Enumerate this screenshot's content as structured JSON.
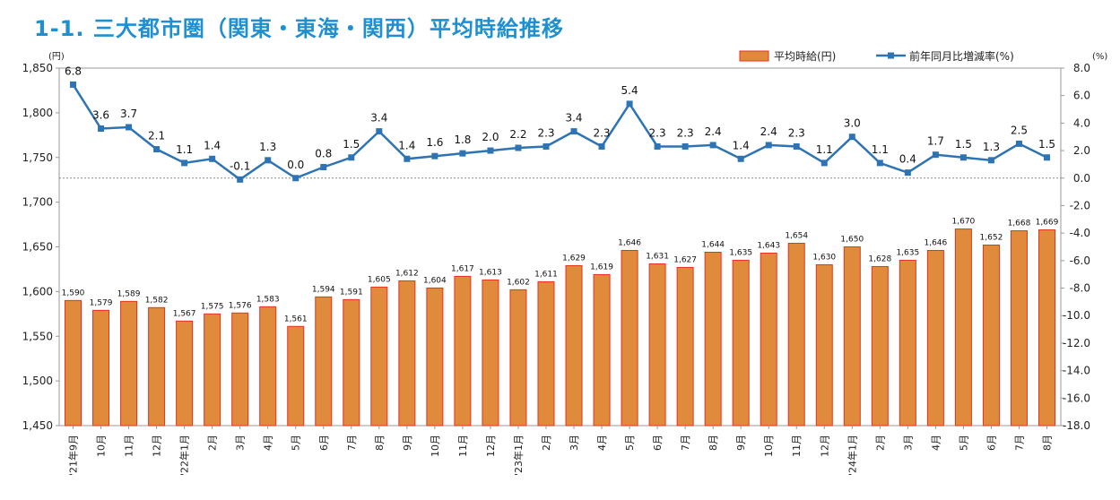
{
  "title": "1-1. 三大都市圏（関東・東海・関西）平均時給推移",
  "chart_data": {
    "type": "bar+line",
    "categories": [
      "'21年9月",
      "10月",
      "11月",
      "12月",
      "'22年1月",
      "2月",
      "3月",
      "4月",
      "5月",
      "6月",
      "7月",
      "8月",
      "9月",
      "10月",
      "11月",
      "12月",
      "'23年1月",
      "2月",
      "3月",
      "4月",
      "5月",
      "6月",
      "7月",
      "8月",
      "9月",
      "10月",
      "11月",
      "12月",
      "'24年1月",
      "2月",
      "3月",
      "4月",
      "5月",
      "6月",
      "7月",
      "8月"
    ],
    "series": [
      {
        "name": "平均時給(円)",
        "axis": "left",
        "type": "bar",
        "values": [
          1590,
          1579,
          1589,
          1582,
          1567,
          1575,
          1576,
          1583,
          1561,
          1594,
          1591,
          1605,
          1612,
          1604,
          1617,
          1613,
          1602,
          1611,
          1629,
          1619,
          1646,
          1631,
          1627,
          1644,
          1635,
          1643,
          1654,
          1630,
          1650,
          1628,
          1635,
          1646,
          1670,
          1652,
          1668,
          1669
        ]
      },
      {
        "name": "前年同月比増減率(%)",
        "axis": "right",
        "type": "line",
        "values": [
          6.8,
          3.6,
          3.7,
          2.1,
          1.1,
          1.4,
          -0.1,
          1.3,
          0.0,
          0.8,
          1.5,
          3.4,
          1.4,
          1.6,
          1.8,
          2.0,
          2.2,
          2.3,
          3.4,
          2.3,
          5.4,
          2.3,
          2.3,
          2.4,
          1.4,
          2.4,
          2.3,
          1.1,
          3.0,
          1.1,
          0.4,
          1.7,
          1.5,
          1.3,
          2.5,
          1.5
        ]
      }
    ],
    "bar_labels": [
      "1,590",
      "1,579",
      "1,589",
      "1,582",
      "1,567",
      "1,575",
      "1,576",
      "1,583",
      "1,561",
      "1,594",
      "1,591",
      "1,605",
      "1,612",
      "1,604",
      "1,617",
      "1,613",
      "1,602",
      "1,611",
      "1,629",
      "1,619",
      "1,646",
      "1,631",
      "1,627",
      "1,644",
      "1,635",
      "1,643",
      "1,654",
      "1,630",
      "1,650",
      "1,628",
      "1,635",
      "1,646",
      "1,670",
      "1,652",
      "1,668",
      "1,669"
    ],
    "line_labels": [
      "6.8",
      "3.6",
      "3.7",
      "2.1",
      "1.1",
      "1.4",
      "-0.1",
      "1.3",
      "0.0",
      "0.8",
      "1.5",
      "3.4",
      "1.4",
      "1.6",
      "1.8",
      "2.0",
      "2.2",
      "2.3",
      "3.4",
      "2.3",
      "5.4",
      "2.3",
      "2.3",
      "2.4",
      "1.4",
      "2.4",
      "2.3",
      "1.1",
      "3.0",
      "1.1",
      "0.4",
      "1.7",
      "1.5",
      "1.3",
      "2.5",
      "1.5"
    ],
    "y_left": {
      "unit": "(円)",
      "min": 1450,
      "max": 1850,
      "ticks": [
        1450,
        1500,
        1550,
        1600,
        1650,
        1700,
        1750,
        1800,
        1850
      ],
      "tick_labels": [
        "1,450",
        "1,500",
        "1,550",
        "1,600",
        "1,650",
        "1,700",
        "1,750",
        "1,800",
        "1,850"
      ]
    },
    "y_right": {
      "unit": "(%)",
      "min": -18,
      "max": 8,
      "ticks": [
        -18,
        -16,
        -14,
        -12,
        -10,
        -8,
        -6,
        -4,
        -2,
        0,
        2,
        4,
        6,
        8
      ],
      "tick_labels": [
        "-18.0",
        "-16.0",
        "-14.0",
        "-12.0",
        "-10.0",
        "-8.0",
        "-6.0",
        "-4.0",
        "-2.0",
        "0.0",
        "2.0",
        "4.0",
        "6.0",
        "8.0"
      ]
    },
    "zero_reference": "dotted line at 0.0%",
    "legend": {
      "position": "top-right",
      "items": [
        "平均時給(円)",
        "前年同月比増減率(%)"
      ]
    },
    "colors": {
      "bar_fill": "#e08a3c",
      "bar_edge": "#e8311f",
      "line": "#2e74b5",
      "title": "#1e8fd0"
    }
  }
}
